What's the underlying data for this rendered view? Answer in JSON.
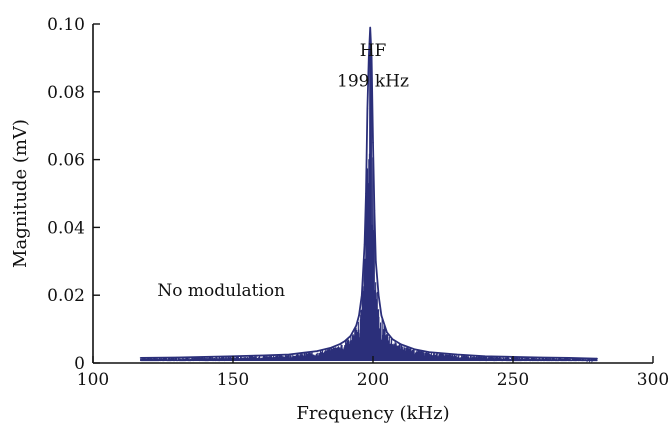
{
  "chart_data": {
    "type": "line",
    "title": "",
    "xlabel": "Frequency (kHz)",
    "ylabel": "Magnitude (mV)",
    "xlim": [
      100,
      300
    ],
    "ylim": [
      0,
      0.1
    ],
    "x_ticks": [
      100,
      150,
      200,
      250,
      300
    ],
    "x_tick_labels": [
      "100",
      "150",
      "200",
      "250",
      "300"
    ],
    "y_ticks": [
      0,
      0.02,
      0.04,
      0.06,
      0.08,
      0.1
    ],
    "y_tick_labels": [
      "0",
      "0.02",
      "0.04",
      "0.06",
      "0.08",
      "0.10"
    ],
    "grid": false,
    "series_color": "#2b2f7a",
    "series": [
      {
        "x": [
          117,
          130,
          140,
          150,
          160,
          170,
          175,
          180,
          185,
          188,
          190,
          192,
          194,
          195,
          196,
          197,
          197.5,
          198,
          198.5,
          199,
          199.5,
          200,
          200.5,
          201,
          202,
          203,
          205,
          207,
          210,
          215,
          220,
          230,
          240,
          250,
          260,
          270,
          280
        ],
        "values": [
          0.0015,
          0.0016,
          0.0018,
          0.002,
          0.0022,
          0.0025,
          0.003,
          0.0035,
          0.0045,
          0.0055,
          0.0065,
          0.008,
          0.011,
          0.014,
          0.02,
          0.035,
          0.05,
          0.075,
          0.09,
          0.099,
          0.09,
          0.065,
          0.045,
          0.03,
          0.02,
          0.014,
          0.009,
          0.007,
          0.0055,
          0.004,
          0.0032,
          0.0025,
          0.002,
          0.0018,
          0.0016,
          0.0015,
          0.0013
        ]
      }
    ],
    "annotations": [
      {
        "text": "HF",
        "x": 200,
        "y": 0.0905
      },
      {
        "text": "199 kHz",
        "x": 200,
        "y": 0.0815
      },
      {
        "text": "No modulation",
        "x": 150,
        "y": 0.0198
      }
    ]
  }
}
